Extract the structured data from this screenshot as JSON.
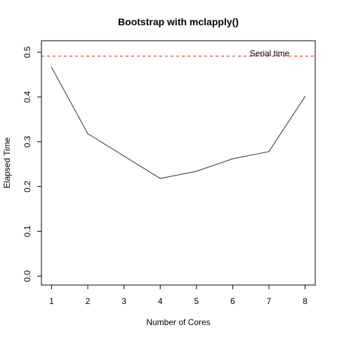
{
  "chart_data": {
    "type": "line",
    "title": "Bootstrap with mclapply()",
    "xlabel": "Number of Cores",
    "ylabel": "Elapsed Time",
    "x": [
      1,
      2,
      3,
      4,
      5,
      6,
      7,
      8
    ],
    "series": [
      {
        "values": [
          0.466,
          0.318,
          0.268,
          0.218,
          0.234,
          0.262,
          0.278,
          0.401
        ],
        "color": "#333333"
      }
    ],
    "xlim": [
      0.72,
      8.28
    ],
    "ylim": [
      -0.02,
      0.5255
    ],
    "xticks": [
      "1",
      "2",
      "3",
      "4",
      "5",
      "6",
      "7",
      "8"
    ],
    "yticks": [
      "0.0",
      "0.1",
      "0.2",
      "0.3",
      "0.4",
      "0.5"
    ],
    "ytick_values": [
      0.0,
      0.1,
      0.2,
      0.3,
      0.4,
      0.5
    ],
    "reference_line": {
      "label": "Serial time",
      "value": 0.491,
      "color": "#ff0000",
      "style": "dashed"
    },
    "grid": false
  }
}
